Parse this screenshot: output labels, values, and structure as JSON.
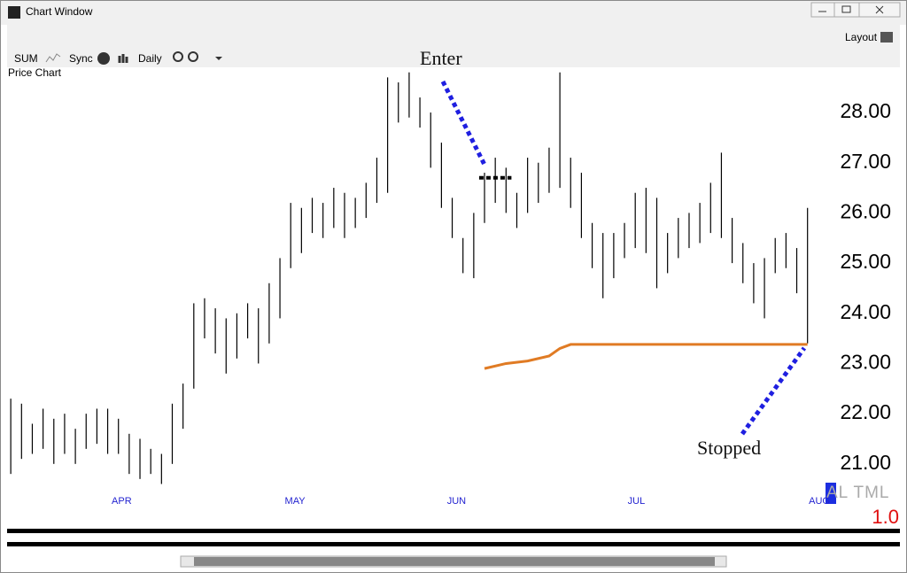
{
  "window": {
    "title": "Chart Window",
    "layout_button": "Layout",
    "toolbar": [
      "SUM",
      "Sync",
      "Daily"
    ],
    "panel_label": "Price Chart",
    "indicator_label": "AL TML",
    "indicator_value": "1.0"
  },
  "chart_data": {
    "type": "hilo",
    "color": "#000000",
    "high": [
      22.3,
      22.2,
      21.8,
      22.1,
      21.9,
      22.0,
      21.7,
      22.0,
      22.1,
      22.1,
      21.9,
      21.6,
      21.5,
      21.3,
      21.2,
      22.2,
      22.6,
      24.2,
      24.3,
      24.1,
      23.9,
      24.0,
      24.2,
      24.1,
      24.6,
      25.1,
      26.2,
      26.1,
      26.3,
      26.2,
      26.5,
      26.4,
      26.3,
      26.6,
      27.1,
      28.7,
      28.6,
      28.8,
      28.3,
      28.0,
      27.4,
      26.3,
      25.5,
      26.0,
      26.8,
      27.1,
      26.9,
      26.4,
      27.1,
      27.0,
      27.3,
      28.8,
      27.1,
      26.8,
      25.8,
      25.6,
      25.6,
      25.8,
      26.4,
      26.5,
      26.3,
      25.6,
      25.9,
      26.0,
      26.2,
      26.6,
      27.2,
      25.9,
      25.4,
      25.0,
      25.1,
      25.5,
      25.6,
      25.3,
      26.1
    ],
    "low": [
      20.8,
      21.1,
      21.2,
      21.3,
      21.0,
      21.2,
      21.0,
      21.3,
      21.4,
      21.2,
      21.2,
      20.8,
      20.7,
      20.8,
      20.6,
      21.0,
      21.7,
      22.5,
      23.5,
      23.2,
      22.8,
      23.1,
      23.5,
      23.0,
      23.4,
      23.9,
      24.9,
      25.2,
      25.6,
      25.5,
      25.7,
      25.5,
      25.7,
      25.9,
      26.2,
      26.4,
      27.8,
      27.9,
      27.7,
      26.9,
      26.1,
      25.5,
      24.8,
      24.7,
      25.8,
      26.2,
      26.0,
      25.7,
      26.0,
      26.2,
      26.4,
      26.5,
      26.1,
      25.5,
      24.9,
      24.3,
      24.7,
      25.1,
      25.3,
      25.2,
      24.5,
      24.8,
      25.1,
      25.3,
      25.4,
      25.6,
      25.5,
      25.0,
      24.6,
      24.2,
      23.9,
      24.8,
      24.9,
      24.4,
      23.4
    ],
    "xlim": [
      -1,
      76
    ],
    "xticks": [
      {
        "value": 10.3,
        "label": "APR"
      },
      {
        "value": 26.4,
        "label": "MAY"
      },
      {
        "value": 41.4,
        "label": "JUN"
      },
      {
        "value": 58.1,
        "label": "JUL"
      },
      {
        "value": 75.1,
        "label": "AUG"
      }
    ],
    "ylim": [
      20.45,
      28.83
    ],
    "yticks": [
      {
        "value": 21,
        "label": "21.00"
      },
      {
        "value": 22,
        "label": "22.00"
      },
      {
        "value": 23,
        "label": "23.00"
      },
      {
        "value": 24,
        "label": "24.00"
      },
      {
        "value": 25,
        "label": "25.00"
      },
      {
        "value": 26,
        "label": "26.00"
      },
      {
        "value": 27,
        "label": "27.00"
      },
      {
        "value": 28,
        "label": "28.00"
      }
    ],
    "entry_level": 26.7,
    "stop_line": {
      "x": [
        44,
        46,
        48,
        50,
        51,
        52,
        74
      ],
      "values": [
        22.9,
        23.0,
        23.05,
        23.15,
        23.3,
        23.38,
        23.38
      ],
      "color": "#e07b24"
    },
    "annotations": [
      {
        "text": "Enter"
      },
      {
        "text": "Stopped"
      }
    ]
  }
}
